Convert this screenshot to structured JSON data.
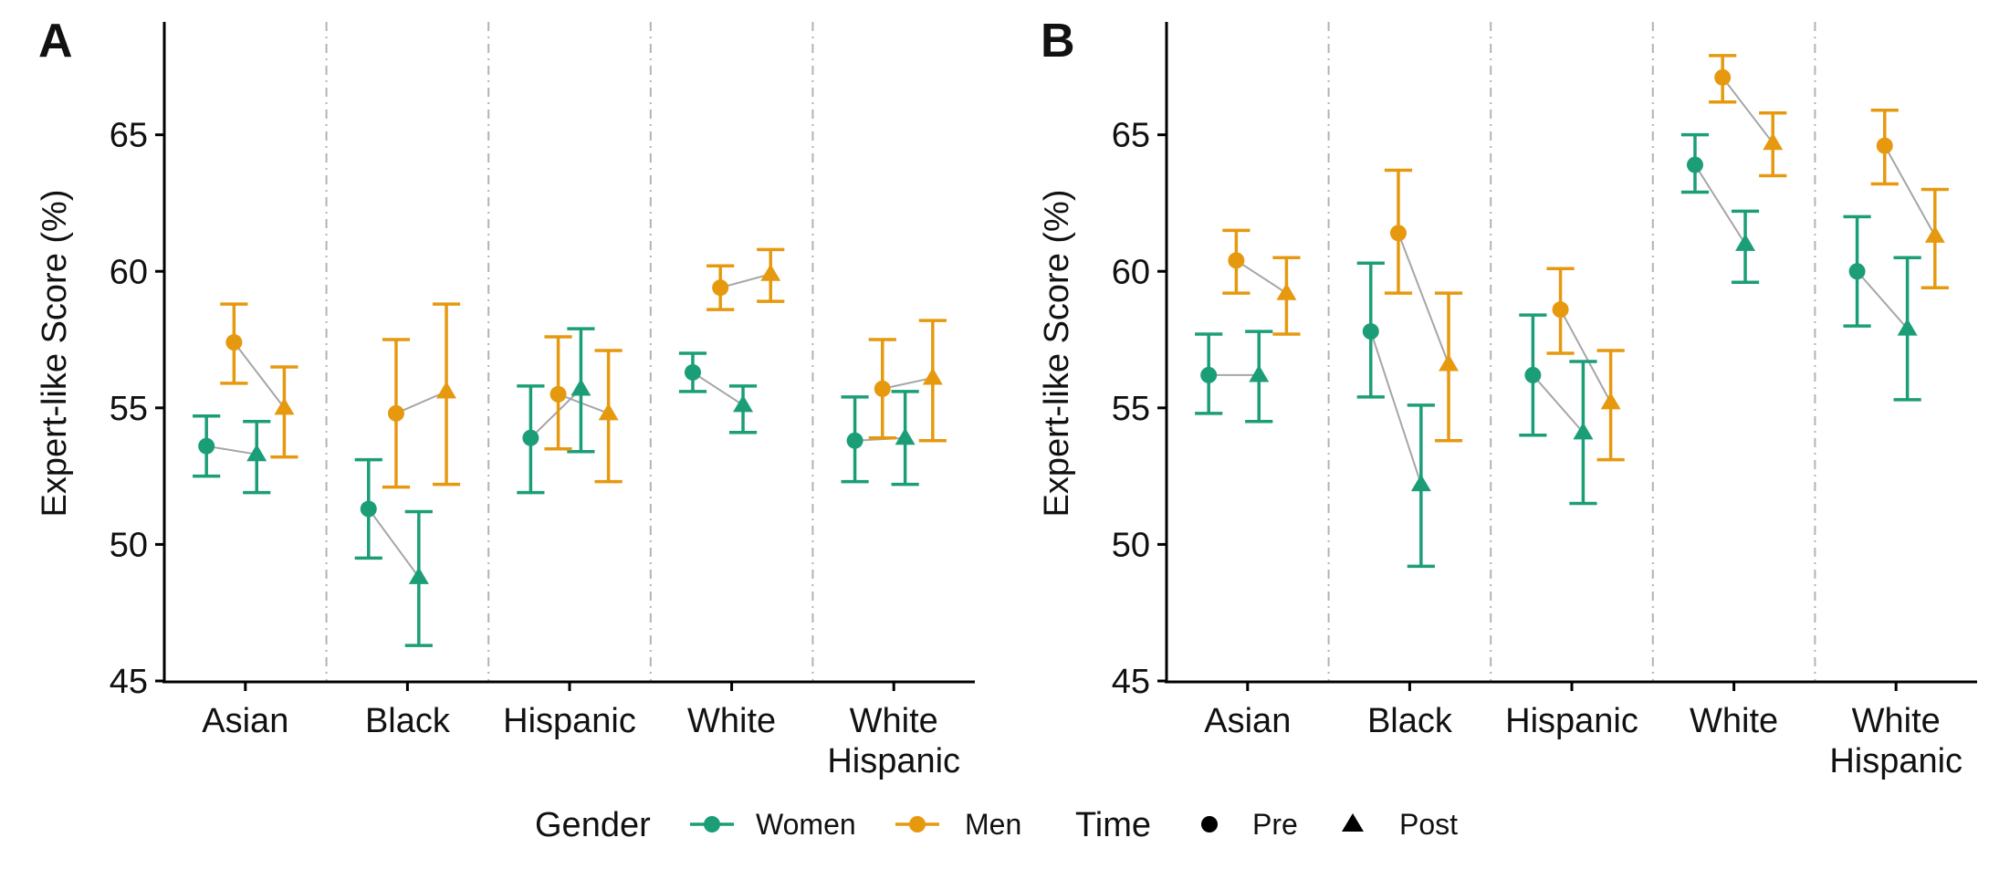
{
  "colors": {
    "Women": "#1b9e77",
    "Men": "#e6990f",
    "connector": "#a6a6a6",
    "separator": "#b3b3b3",
    "axis": "#000000"
  },
  "legend": {
    "gender_title": "Gender",
    "gender_items": [
      "Women",
      "Men"
    ],
    "time_title": "Time",
    "time_items": [
      "Pre",
      "Post"
    ]
  },
  "chart_data": [
    {
      "panel": "A",
      "type": "scatter",
      "ylabel": "Expert-like Score (%)",
      "ylim": [
        45,
        69
      ],
      "yticks": [
        45,
        50,
        55,
        60,
        65
      ],
      "categories": [
        "Asian",
        "Black",
        "Hispanic",
        "White",
        "White\nHispanic"
      ],
      "series": [
        {
          "name": "Women",
          "time": "Pre",
          "values": [
            53.6,
            51.3,
            53.9,
            56.3,
            53.8
          ],
          "lower": [
            52.5,
            49.5,
            51.9,
            55.6,
            52.3
          ],
          "upper": [
            54.7,
            53.1,
            55.8,
            57.0,
            55.4
          ]
        },
        {
          "name": "Women",
          "time": "Post",
          "values": [
            53.3,
            48.8,
            55.7,
            55.1,
            53.9
          ],
          "lower": [
            51.9,
            46.3,
            53.4,
            54.1,
            52.2
          ],
          "upper": [
            54.5,
            51.2,
            57.9,
            55.8,
            55.6
          ]
        },
        {
          "name": "Men",
          "time": "Pre",
          "values": [
            57.4,
            54.8,
            55.5,
            59.4,
            55.7
          ],
          "lower": [
            55.9,
            52.1,
            53.5,
            58.6,
            53.9
          ],
          "upper": [
            58.8,
            57.5,
            57.6,
            60.2,
            57.5
          ]
        },
        {
          "name": "Men",
          "time": "Post",
          "values": [
            55.0,
            55.6,
            54.8,
            59.9,
            56.1
          ],
          "lower": [
            53.2,
            52.2,
            52.3,
            58.9,
            53.8
          ],
          "upper": [
            56.5,
            58.8,
            57.1,
            60.8,
            58.2
          ]
        }
      ]
    },
    {
      "panel": "B",
      "type": "scatter",
      "ylabel": "Expert-like Score (%)",
      "ylim": [
        45,
        69
      ],
      "yticks": [
        45,
        50,
        55,
        60,
        65
      ],
      "categories": [
        "Asian",
        "Black",
        "Hispanic",
        "White",
        "White\nHispanic"
      ],
      "series": [
        {
          "name": "Women",
          "time": "Pre",
          "values": [
            56.2,
            57.8,
            56.2,
            63.9,
            60.0
          ],
          "lower": [
            54.8,
            55.4,
            54.0,
            62.9,
            58.0
          ],
          "upper": [
            57.7,
            60.3,
            58.4,
            65.0,
            62.0
          ]
        },
        {
          "name": "Women",
          "time": "Post",
          "values": [
            56.2,
            52.2,
            54.1,
            61.0,
            57.9
          ],
          "lower": [
            54.5,
            49.2,
            51.5,
            59.6,
            55.3
          ],
          "upper": [
            57.8,
            55.1,
            56.7,
            62.2,
            60.5
          ]
        },
        {
          "name": "Men",
          "time": "Pre",
          "values": [
            60.4,
            61.4,
            58.6,
            67.1,
            64.6
          ],
          "lower": [
            59.2,
            59.2,
            57.0,
            66.2,
            63.2
          ],
          "upper": [
            61.5,
            63.7,
            60.1,
            67.9,
            65.9
          ]
        },
        {
          "name": "Men",
          "time": "Post",
          "values": [
            59.2,
            56.6,
            55.2,
            64.7,
            61.3
          ],
          "lower": [
            57.7,
            53.8,
            53.1,
            63.5,
            59.4
          ],
          "upper": [
            60.5,
            59.2,
            57.1,
            65.8,
            63.0
          ]
        }
      ]
    }
  ]
}
